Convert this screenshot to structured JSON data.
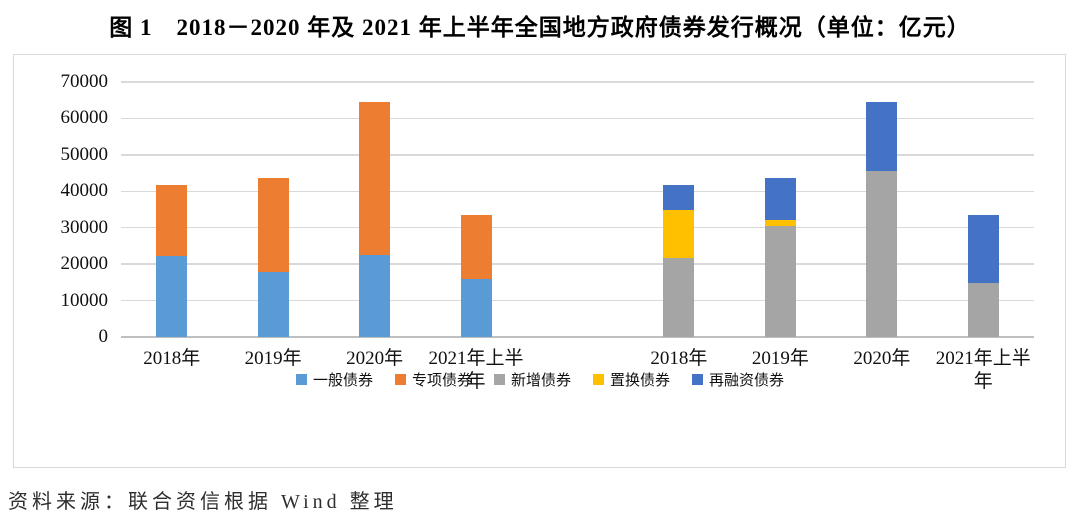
{
  "figure": {
    "title": "图 1　2018－2020 年及 2021 年上半年全国地方政府债券发行概况（单位：亿元）",
    "source": "资料来源：联合资信根据 Wind 整理"
  },
  "chart_data": {
    "type": "bar",
    "stacked": true,
    "title": "图 1　2018－2020 年及 2021 年上半年全国地方政府债券发行概况（单位：亿元）",
    "unit": "亿元",
    "ylim": [
      0,
      70000
    ],
    "yticks": [
      0,
      10000,
      20000,
      30000,
      40000,
      50000,
      60000,
      70000
    ],
    "grid": true,
    "legend_position": "bottom",
    "legend": [
      "一般债券",
      "专项债券",
      "新增债券",
      "置换债券",
      "再融资债券"
    ],
    "category_slots": 9,
    "groups": [
      {
        "categories": [
          "2018年",
          "2019年",
          "2020年",
          "2021年上半年"
        ],
        "series": [
          {
            "name": "一般债券",
            "color": "#5B9BD5",
            "values": [
              22192,
              17742,
              22439,
              15910
            ]
          },
          {
            "name": "专项债券",
            "color": "#ED7D31",
            "values": [
              19460,
              25882,
              41999,
              17501
            ]
          }
        ]
      },
      {
        "categories": [
          "2018年",
          "2019年",
          "2020年",
          "2021年上半年"
        ],
        "series": [
          {
            "name": "新增债券",
            "color": "#A5A5A5",
            "values": [
              21660,
              30561,
              45525,
              14800
            ]
          },
          {
            "name": "置换债券",
            "color": "#FFC000",
            "values": [
              13130,
              1579,
              0,
              0
            ]
          },
          {
            "name": "再融资债券",
            "color": "#4472C4",
            "values": [
              6862,
              11484,
              18913,
              18611
            ]
          }
        ]
      }
    ]
  }
}
